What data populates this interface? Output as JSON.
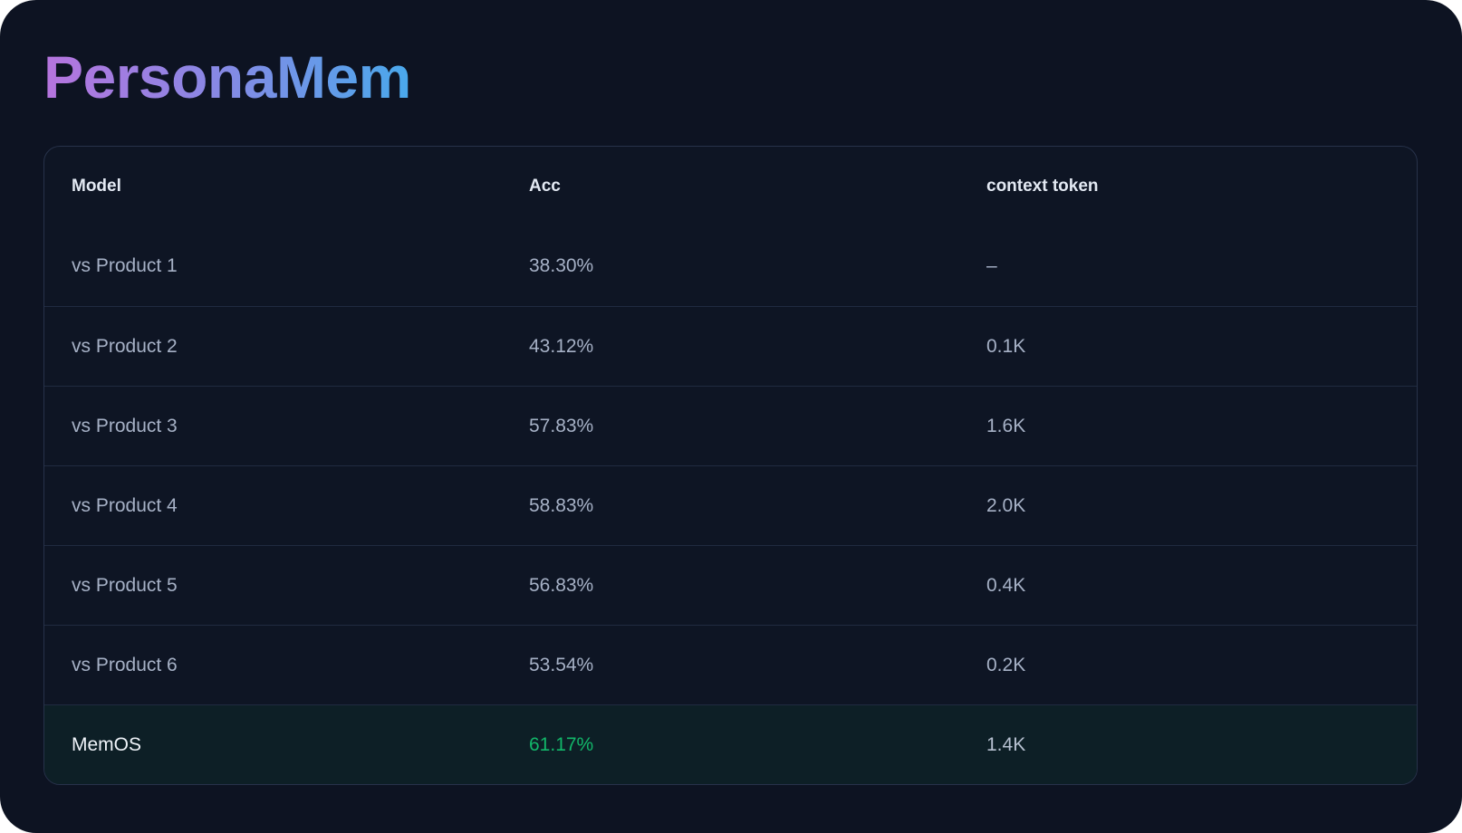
{
  "page": {
    "title": "PersonaMem"
  },
  "colors": {
    "page_bg": "#0d1322",
    "card_bg": "#0e1524",
    "card_border": "#27324a",
    "row_divider": "#202b40",
    "header_text": "#e3e9f3",
    "row_text": "#a6b1c6",
    "highlight_row_bg": "#0d1f26",
    "highlight_model_text": "#eff3f9",
    "accent_green": "#12b76a",
    "title_gradient_start": "#b674de",
    "title_gradient_end": "#49a9ec"
  },
  "table": {
    "columns": [
      "Model",
      "Acc",
      "context token"
    ],
    "rows": [
      {
        "model": "vs Product 1",
        "acc": "38.30%",
        "context_token": "–"
      },
      {
        "model": "vs Product 2",
        "acc": "43.12%",
        "context_token": "0.1K"
      },
      {
        "model": "vs Product 3",
        "acc": "57.83%",
        "context_token": "1.6K"
      },
      {
        "model": "vs Product 4",
        "acc": "58.83%",
        "context_token": "2.0K"
      },
      {
        "model": "vs Product 5",
        "acc": "56.83%",
        "context_token": "0.4K"
      },
      {
        "model": "vs Product 6",
        "acc": "53.54%",
        "context_token": "0.2K"
      },
      {
        "model": "MemOS",
        "acc": "61.17%",
        "context_token": "1.4K"
      }
    ]
  }
}
